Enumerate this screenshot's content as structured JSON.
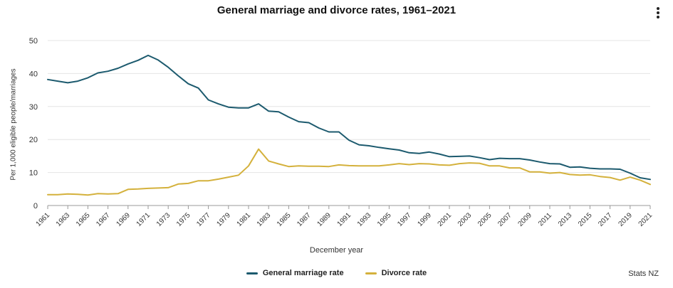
{
  "chart_data": {
    "type": "line",
    "title": "General marriage and divorce rates, 1961–2021",
    "xlabel": "December year",
    "ylabel": "Per 1,000 eligible people/marriages",
    "ylim": [
      0,
      50
    ],
    "yticks": [
      0,
      10,
      20,
      30,
      40,
      50
    ],
    "x": [
      1961,
      1962,
      1963,
      1964,
      1965,
      1966,
      1967,
      1968,
      1969,
      1970,
      1971,
      1972,
      1973,
      1974,
      1975,
      1976,
      1977,
      1978,
      1979,
      1980,
      1981,
      1982,
      1983,
      1984,
      1985,
      1986,
      1987,
      1988,
      1989,
      1990,
      1991,
      1992,
      1993,
      1994,
      1995,
      1996,
      1997,
      1998,
      1999,
      2000,
      2001,
      2002,
      2003,
      2004,
      2005,
      2006,
      2007,
      2008,
      2009,
      2010,
      2011,
      2012,
      2013,
      2014,
      2015,
      2016,
      2017,
      2018,
      2019,
      2020,
      2021
    ],
    "xtick_labels": [
      "1961",
      "1963",
      "1965",
      "1967",
      "1969",
      "1971",
      "1973",
      "1975",
      "1977",
      "1979",
      "1981",
      "1983",
      "1985",
      "1987",
      "1989",
      "1991",
      "1993",
      "1995",
      "1997",
      "1999",
      "2001",
      "2003",
      "2005",
      "2007",
      "2009",
      "2011",
      "2013",
      "2015",
      "2017",
      "2019",
      "2021"
    ],
    "series": [
      {
        "name": "General marriage rate",
        "color": "#1c5a6e",
        "values": [
          38.2,
          37.7,
          37.2,
          37.7,
          38.7,
          40.2,
          40.7,
          41.6,
          42.9,
          44.0,
          45.5,
          44.1,
          41.9,
          39.3,
          36.9,
          35.6,
          32.0,
          30.8,
          29.8,
          29.6,
          29.6,
          30.8,
          28.6,
          28.4,
          26.8,
          25.4,
          25.1,
          23.5,
          22.3,
          22.3,
          19.8,
          18.4,
          18.1,
          17.6,
          17.2,
          16.8,
          16.0,
          15.8,
          16.2,
          15.6,
          14.8,
          14.9,
          15.0,
          14.5,
          13.9,
          14.3,
          14.2,
          14.2,
          13.8,
          13.2,
          12.7,
          12.6,
          11.6,
          11.7,
          11.3,
          11.1,
          11.1,
          11.0,
          9.8,
          8.4,
          7.9
        ]
      },
      {
        "name": "Divorce rate",
        "color": "#d4b13c",
        "values": [
          3.3,
          3.3,
          3.5,
          3.4,
          3.2,
          3.6,
          3.5,
          3.6,
          4.9,
          5.0,
          5.2,
          5.3,
          5.4,
          6.5,
          6.7,
          7.5,
          7.5,
          8.0,
          8.6,
          9.2,
          12.0,
          17.1,
          13.5,
          12.6,
          11.8,
          12.0,
          11.9,
          11.9,
          11.8,
          12.3,
          12.1,
          12.0,
          12.0,
          12.0,
          12.3,
          12.7,
          12.4,
          12.7,
          12.6,
          12.3,
          12.2,
          12.7,
          12.9,
          12.8,
          12.0,
          12.0,
          11.4,
          11.4,
          10.2,
          10.2,
          9.8,
          10.0,
          9.4,
          9.2,
          9.3,
          8.8,
          8.5,
          7.7,
          8.6,
          7.7,
          6.4
        ]
      }
    ],
    "legend_position": "bottom-center"
  },
  "menu_label": "Chart menu",
  "source": "Stats NZ"
}
